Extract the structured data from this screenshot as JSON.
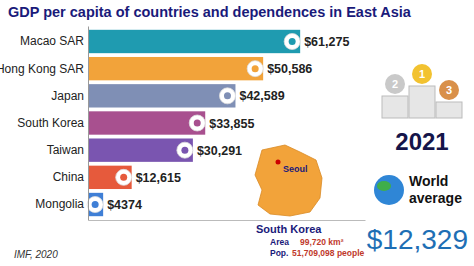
{
  "chart_data": {
    "type": "bar",
    "orientation": "horizontal",
    "title": "GDP per capita of countries and dependences in East Asia",
    "categories": [
      "Macao SAR",
      "Hong Kong SAR",
      "Japan",
      "South Korea",
      "Taiwan",
      "China",
      "Mongolia"
    ],
    "values": [
      61275,
      50586,
      42589,
      33855,
      30291,
      12615,
      4374
    ],
    "value_labels": [
      "$61,275",
      "$50,586",
      "$42,589",
      "$33,855",
      "$30,291",
      "$12,615",
      "$4374"
    ],
    "colors": [
      "#1f9bb0",
      "#f2a33a",
      "#7f8fb5",
      "#a8508f",
      "#7a55b0",
      "#e65a3c",
      "#3f7fd6"
    ],
    "xlim": [
      0,
      80000
    ],
    "data_labels": true,
    "tick_labels": "y",
    "grid": false,
    "annotations": {
      "year": "2021",
      "podium": [
        "2",
        "1",
        "3"
      ],
      "world_average_label": "World average",
      "world_average_value_label": "$12,329",
      "source": "IMF, 2020",
      "map_city": "Seoul",
      "map_country": "South Korea",
      "area_label": "Area",
      "area_value_label": "99,720 km²",
      "population_label": "Pop.",
      "population_value_label": "51,709,098 people"
    }
  }
}
